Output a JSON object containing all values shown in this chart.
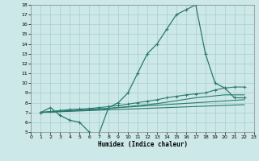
{
  "bg_color": "#cce8e8",
  "line_color": "#2a7a6e",
  "grid_color": "#aacccc",
  "xlabel": "Humidex (Indice chaleur)",
  "xlim": [
    0,
    23
  ],
  "ylim": [
    5,
    18
  ],
  "xticks": [
    0,
    1,
    2,
    3,
    4,
    5,
    6,
    7,
    8,
    9,
    10,
    11,
    12,
    13,
    14,
    15,
    16,
    17,
    18,
    19,
    20,
    21,
    22,
    23
  ],
  "yticks": [
    5,
    6,
    7,
    8,
    9,
    10,
    11,
    12,
    13,
    14,
    15,
    16,
    17,
    18
  ],
  "curve1_x": [
    1,
    2,
    3,
    4,
    5,
    6,
    7,
    8,
    9,
    10,
    11,
    12,
    13,
    14,
    15,
    16,
    17,
    18,
    19,
    20,
    21,
    22
  ],
  "curve1_y": [
    7.0,
    7.5,
    6.7,
    6.2,
    6.0,
    5.0,
    4.8,
    7.5,
    8.0,
    9.0,
    11.0,
    13.0,
    14.0,
    15.5,
    17.0,
    17.5,
    18.0,
    13.0,
    10.0,
    9.5,
    8.5,
    8.5
  ],
  "curve2_x": [
    1,
    2,
    3,
    4,
    5,
    6,
    7,
    8,
    9,
    10,
    11,
    12,
    13,
    14,
    15,
    16,
    17,
    18,
    19,
    20,
    21,
    22
  ],
  "curve2_y": [
    7.0,
    7.1,
    7.2,
    7.3,
    7.35,
    7.4,
    7.5,
    7.6,
    7.7,
    7.85,
    8.0,
    8.15,
    8.3,
    8.5,
    8.65,
    8.8,
    8.9,
    9.0,
    9.3,
    9.5,
    9.6,
    9.6
  ],
  "curve3_x": [
    1,
    2,
    3,
    4,
    5,
    6,
    7,
    8,
    9,
    10,
    11,
    12,
    13,
    14,
    15,
    16,
    17,
    18,
    19,
    20,
    21,
    22
  ],
  "curve3_y": [
    7.0,
    7.05,
    7.1,
    7.15,
    7.2,
    7.25,
    7.3,
    7.4,
    7.5,
    7.6,
    7.7,
    7.8,
    7.9,
    8.05,
    8.2,
    8.35,
    8.5,
    8.6,
    8.7,
    8.8,
    8.8,
    8.8
  ],
  "curve4_x": [
    1,
    22
  ],
  "curve4_y": [
    7.0,
    8.3
  ],
  "curve5_x": [
    1,
    22
  ],
  "curve5_y": [
    7.0,
    7.8
  ]
}
